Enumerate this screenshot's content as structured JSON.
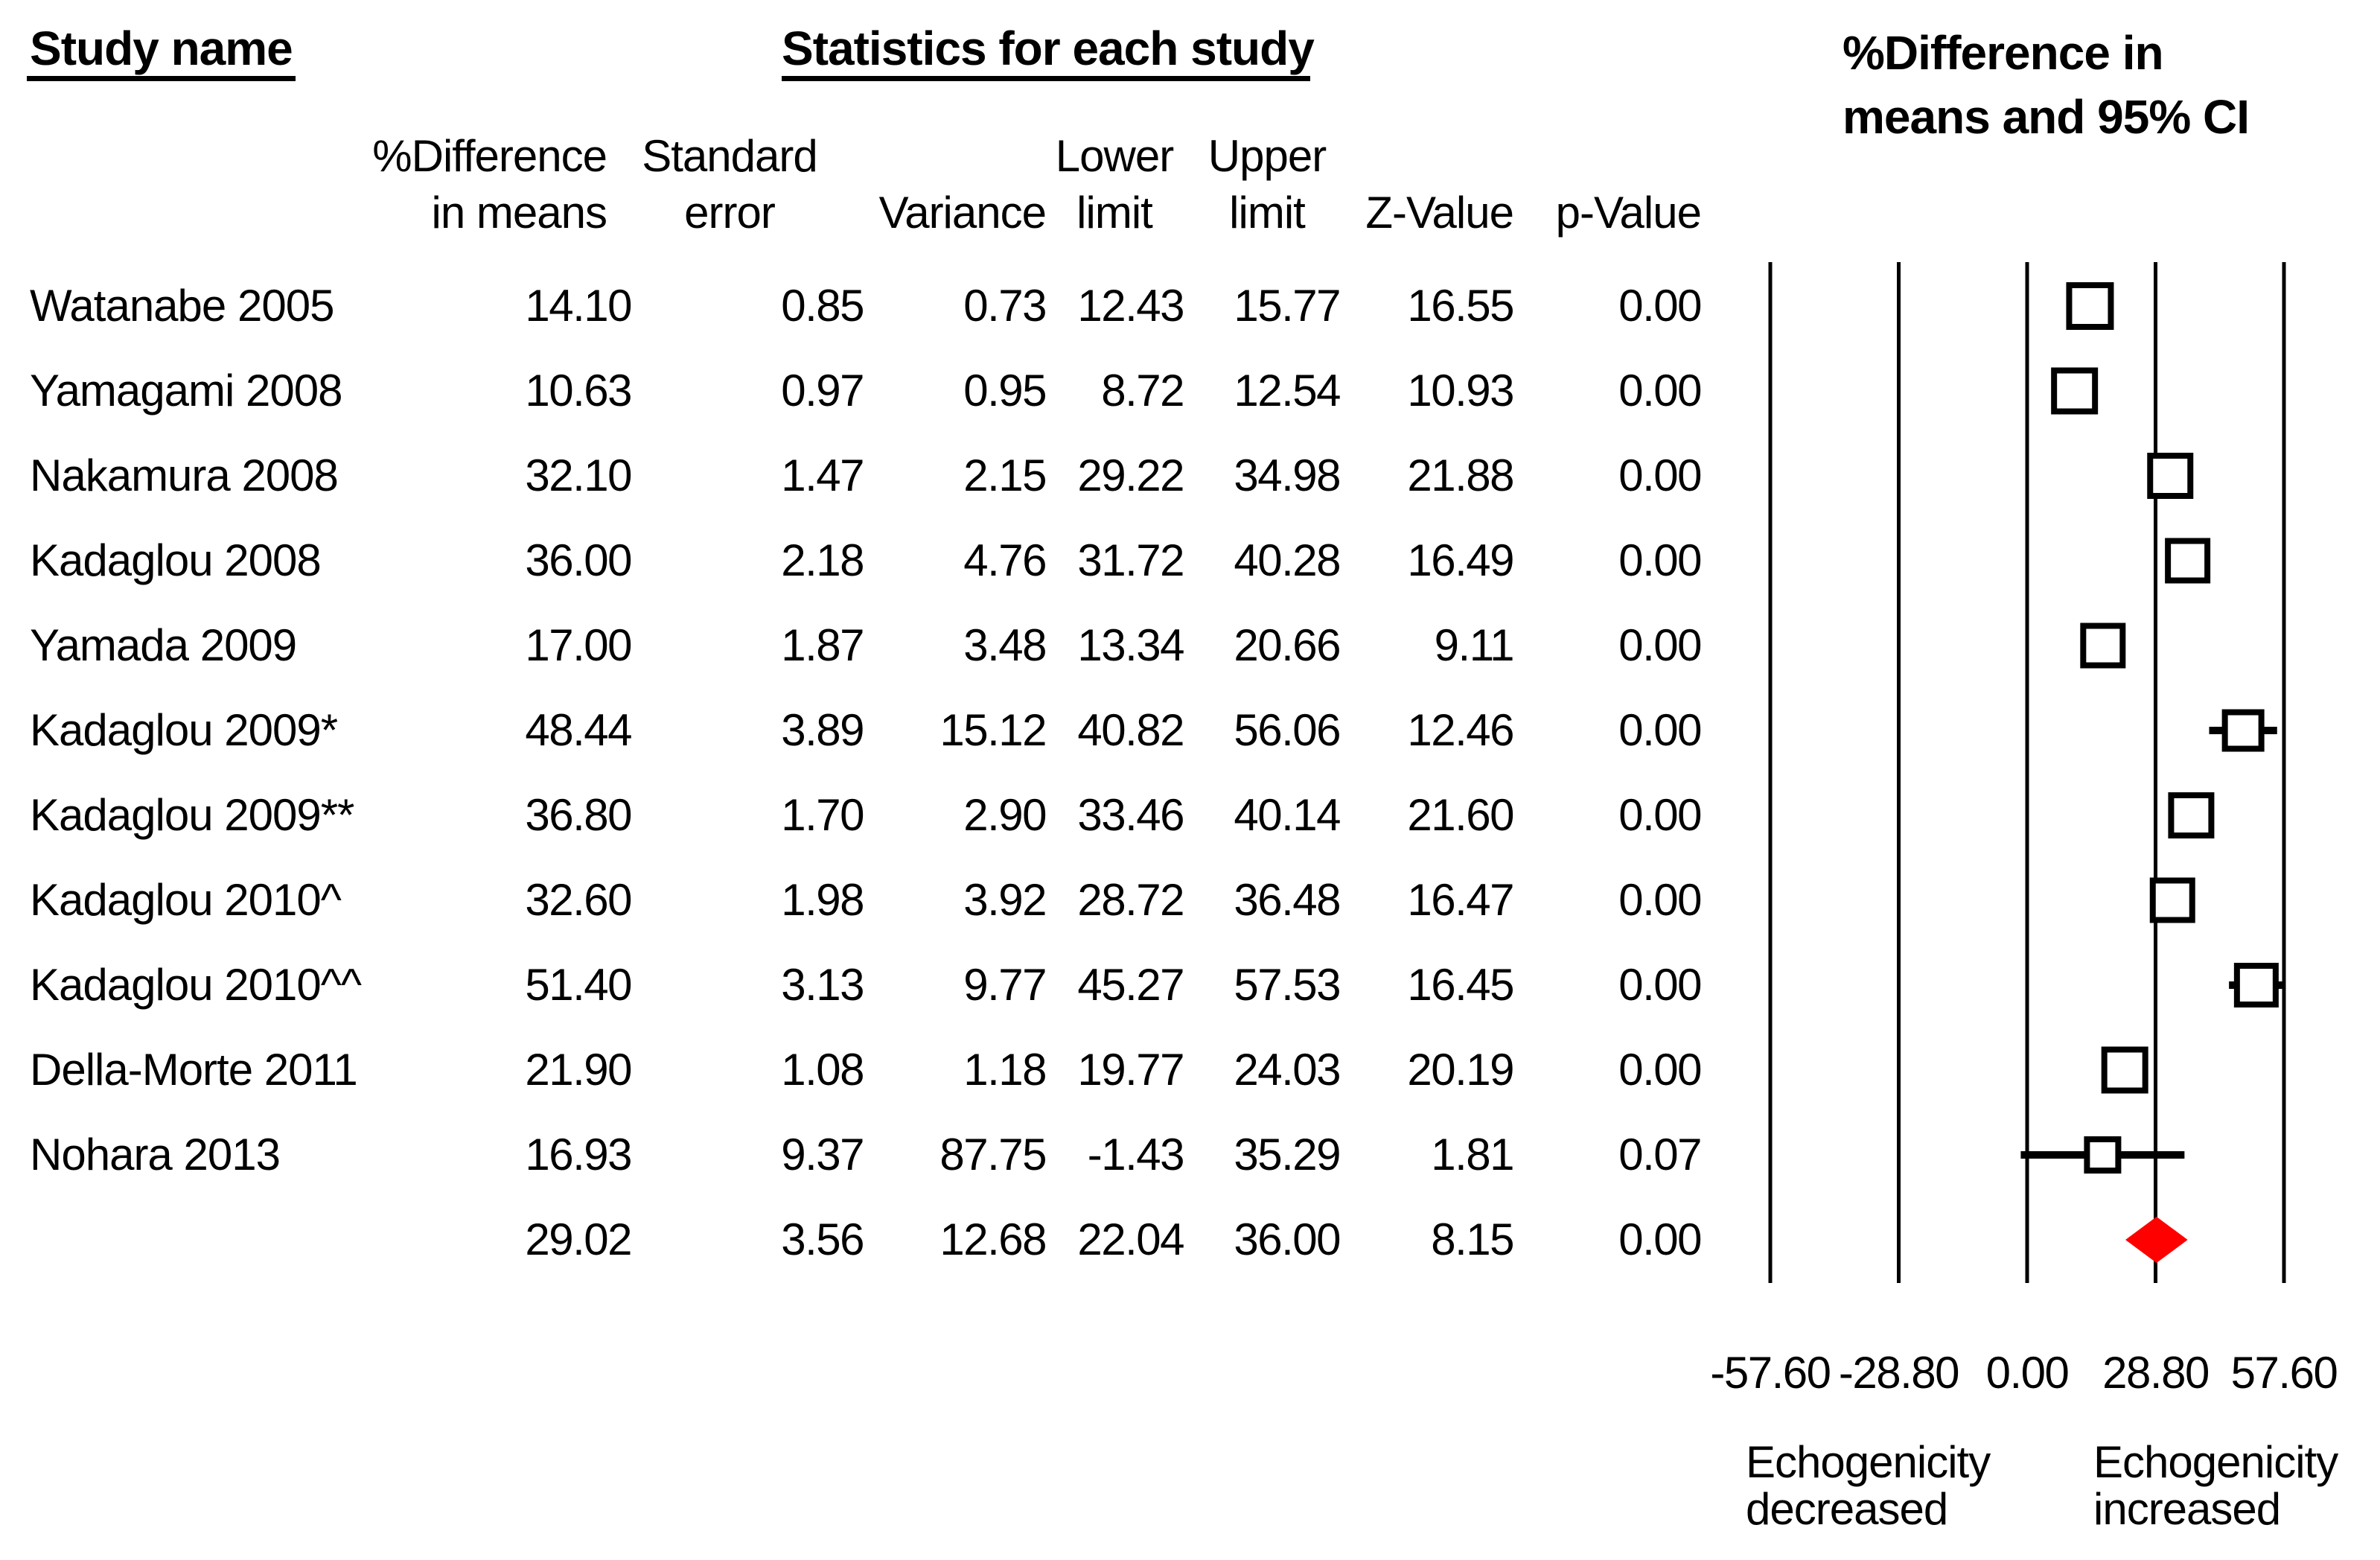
{
  "figure": {
    "study_col_header": "Study name",
    "stats_header": "Statistics for each study",
    "plot_header_line1": "%Difference in",
    "plot_header_line2": "means and 95% CI"
  },
  "columns": [
    {
      "line1": "%Difference",
      "line2": "in means"
    },
    {
      "line1": "Standard",
      "line2": "error"
    },
    {
      "line1": "",
      "line2": "Variance"
    },
    {
      "line1": "Lower",
      "line2": "limit"
    },
    {
      "line1": "Upper",
      "line2": "limit"
    },
    {
      "line1": "",
      "line2": "Z-Value"
    },
    {
      "line1": "",
      "line2": "p-Value"
    }
  ],
  "chart_data": {
    "type": "forest",
    "title": "%Difference in means and 95% CI",
    "xlim": [
      -57.6,
      57.6
    ],
    "tick_values": [
      -57.6,
      -28.8,
      0,
      28.8,
      57.6
    ],
    "tick_labels": [
      "-57.60",
      "-28.80",
      "0.00",
      "28.80",
      "57.60"
    ],
    "legend_left": [
      "Echogenicity",
      "decreased"
    ],
    "legend_right": [
      "Echogenicity",
      "increased"
    ],
    "summary_color": "#ff0000",
    "studies": [
      {
        "name": "Watanabe 2005",
        "cells": [
          "14.10",
          "0.85",
          "0.73",
          "12.43",
          "15.77",
          "16.55",
          "0.00"
        ],
        "est": 14.1,
        "lower": 12.43,
        "upper": 15.77,
        "marker_size": 56
      },
      {
        "name": "Yamagami 2008",
        "cells": [
          "10.63",
          "0.97",
          "0.95",
          "8.72",
          "12.54",
          "10.93",
          "0.00"
        ],
        "est": 10.63,
        "lower": 8.72,
        "upper": 12.54,
        "marker_size": 55
      },
      {
        "name": "Nakamura 2008",
        "cells": [
          "32.10",
          "1.47",
          "2.15",
          "29.22",
          "34.98",
          "21.88",
          "0.00"
        ],
        "est": 32.1,
        "lower": 29.22,
        "upper": 34.98,
        "marker_size": 54
      },
      {
        "name": "Kadaglou 2008",
        "cells": [
          "36.00",
          "2.18",
          "4.76",
          "31.72",
          "40.28",
          "16.49",
          "0.00"
        ],
        "est": 36.0,
        "lower": 31.72,
        "upper": 40.28,
        "marker_size": 53
      },
      {
        "name": "Yamada 2009",
        "cells": [
          "17.00",
          "1.87",
          "3.48",
          "13.34",
          "20.66",
          "9.11",
          "0.00"
        ],
        "est": 17.0,
        "lower": 13.34,
        "upper": 20.66,
        "marker_size": 53
      },
      {
        "name": "Kadaglou 2009*",
        "cells": [
          "48.44",
          "3.89",
          "15.12",
          "40.82",
          "56.06",
          "12.46",
          "0.00"
        ],
        "est": 48.44,
        "lower": 40.82,
        "upper": 56.06,
        "marker_size": 49
      },
      {
        "name": "Kadaglou 2009**",
        "cells": [
          "36.80",
          "1.70",
          "2.90",
          "33.46",
          "40.14",
          "21.60",
          "0.00"
        ],
        "est": 36.8,
        "lower": 33.46,
        "upper": 40.14,
        "marker_size": 54
      },
      {
        "name": "Kadaglou 2010^",
        "cells": [
          "32.60",
          "1.98",
          "3.92",
          "28.72",
          "36.48",
          "16.47",
          "0.00"
        ],
        "est": 32.6,
        "lower": 28.72,
        "upper": 36.48,
        "marker_size": 53
      },
      {
        "name": "Kadaglou 2010^^",
        "cells": [
          "51.40",
          "3.13",
          "9.77",
          "45.27",
          "57.53",
          "16.45",
          "0.00"
        ],
        "est": 51.4,
        "lower": 45.27,
        "upper": 57.53,
        "marker_size": 52
      },
      {
        "name": "Della-Morte 2011",
        "cells": [
          "21.90",
          "1.08",
          "1.18",
          "19.77",
          "24.03",
          "20.19",
          "0.00"
        ],
        "est": 21.9,
        "lower": 19.77,
        "upper": 24.03,
        "marker_size": 55
      },
      {
        "name": "Nohara 2013",
        "cells": [
          "16.93",
          "9.37",
          "87.75",
          "-1.43",
          "35.29",
          "1.81",
          "0.07"
        ],
        "est": 16.93,
        "lower": -1.43,
        "upper": 35.29,
        "marker_size": 42
      }
    ],
    "summary": {
      "name": "",
      "cells": [
        "29.02",
        "3.56",
        "12.68",
        "22.04",
        "36.00",
        "8.15",
        "0.00"
      ],
      "est": 29.02,
      "lower": 22.04,
      "upper": 36.0
    }
  }
}
